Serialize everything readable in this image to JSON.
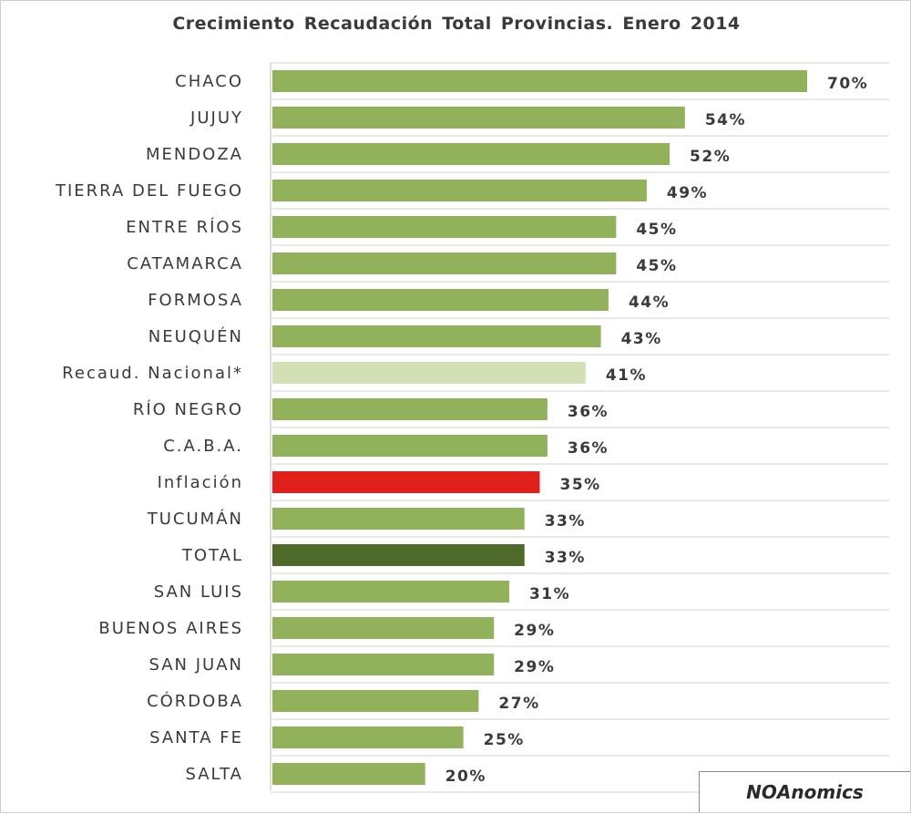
{
  "chart_data": {
    "type": "bar",
    "orientation": "horizontal",
    "title": "Crecimiento Recaudación  Total Provincias.  Enero 2014",
    "categories": [
      "CHACO",
      "JUJUY",
      "MENDOZA",
      "TIERRA DEL FUEGO",
      "ENTRE RÍOS",
      "CATAMARCA",
      "FORMOSA",
      "NEUQUÉN",
      "Recaud. Nacional*",
      "RÍO NEGRO",
      "C.A.B.A.",
      "Inflación",
      "TUCUMÁN",
      "TOTAL",
      "SAN LUIS",
      "BUENOS AIRES",
      "SAN JUAN",
      "CÓRDOBA",
      "SANTA FE",
      "SALTA"
    ],
    "values": [
      70,
      54,
      52,
      49,
      45,
      45,
      44,
      43,
      41,
      36,
      36,
      35,
      33,
      33,
      31,
      29,
      29,
      27,
      25,
      20
    ],
    "labels": [
      "70%",
      "54%",
      "52%",
      "49%",
      "45%",
      "45%",
      "44%",
      "43%",
      "41%",
      "36%",
      "36%",
      "35%",
      "33%",
      "33%",
      "31%",
      "29%",
      "29%",
      "27%",
      "25%",
      "20%"
    ],
    "colors": [
      "#92b15b",
      "#92b15b",
      "#92b15b",
      "#92b15b",
      "#92b15b",
      "#92b15b",
      "#92b15b",
      "#92b15b",
      "#d3dfb4",
      "#92b15b",
      "#92b15b",
      "#e0201a",
      "#92b15b",
      "#4e6b2b",
      "#92b15b",
      "#92b15b",
      "#92b15b",
      "#92b15b",
      "#92b15b",
      "#92b15b"
    ],
    "xlim": [
      0,
      70
    ],
    "grid": true,
    "legend": "none"
  },
  "brand": {
    "text": "NOAnomics"
  }
}
